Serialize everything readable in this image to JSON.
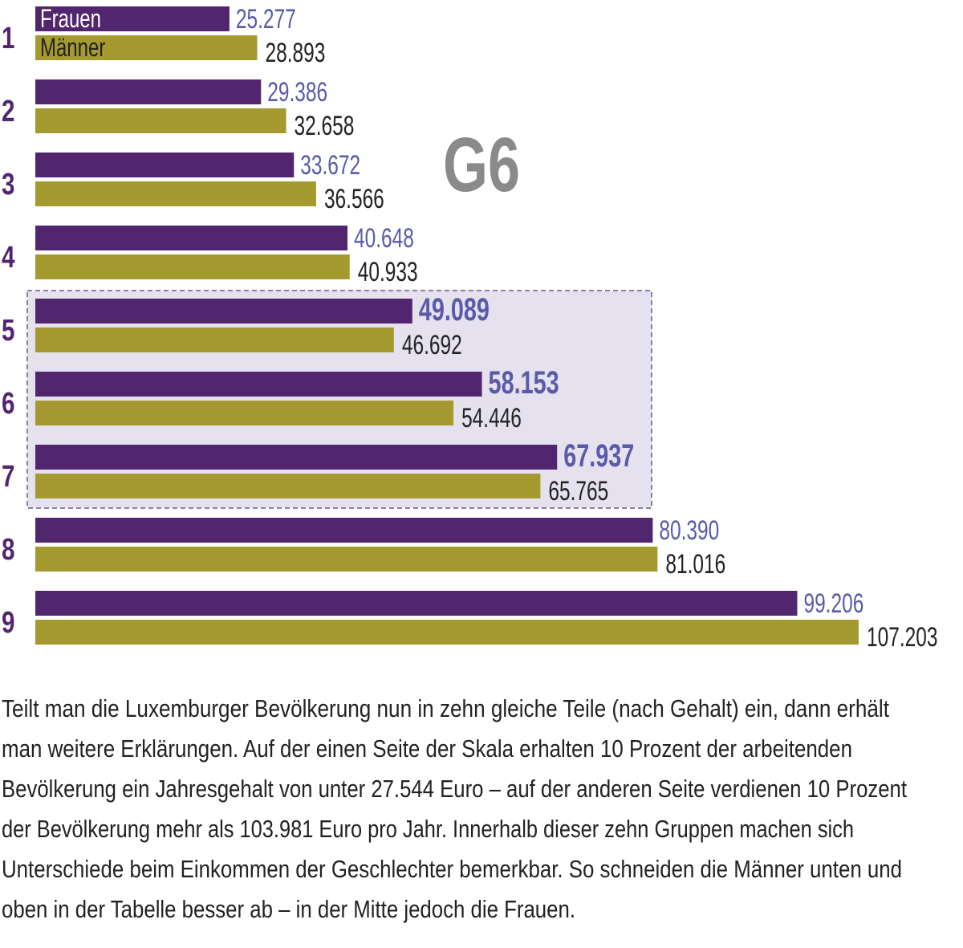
{
  "chart_data": {
    "type": "bar",
    "orientation": "horizontal",
    "categories": [
      "1",
      "2",
      "3",
      "4",
      "5",
      "6",
      "7",
      "8",
      "9"
    ],
    "series": [
      {
        "name": "Frauen",
        "values": [
          25277,
          29386,
          33672,
          40648,
          49089,
          58153,
          67937,
          80390,
          99206
        ],
        "labels": [
          "25.277",
          "29.386",
          "33.672",
          "40.648",
          "49.089",
          "58.153",
          "67.937",
          "80.390",
          "99.206"
        ],
        "color": "#52266e",
        "label_color": "#5a5aa8"
      },
      {
        "name": "Männer",
        "values": [
          28893,
          32658,
          36566,
          40933,
          46692,
          54446,
          65765,
          81016,
          107203
        ],
        "labels": [
          "28.893",
          "32.658",
          "36.566",
          "40.933",
          "46.692",
          "54.446",
          "65.765",
          "81.016",
          "107.203"
        ],
        "color": "#a59a30",
        "label_color": "#222222"
      }
    ],
    "highlighted_categories": [
      "5",
      "6",
      "7"
    ],
    "highlight_color": "#e6e1ee",
    "title": "G6",
    "xlim": [
      0,
      107203
    ],
    "grid": false
  },
  "text": {
    "lines": [
      "Teilt man die Luxemburger Bevölkerung nun in zehn gleiche Teile (nach Gehalt) ein, dann erhält",
      "man weitere Erklärungen. Auf der einen Seite der Skala erhalten 10 Prozent der arbeitenden",
      "Bevölkerung ein Jahresgehalt von unter 27.544 Euro – auf der anderen Seite verdienen 10 Prozent",
      "der Bevölkerung mehr als 103.981 Euro pro Jahr. Innerhalb dieser zehn Gruppen machen sich",
      "Unterschiede beim Einkommen der Geschlechter bemerkbar. So schneiden die Männer unten und",
      "oben in der Tabelle besser ab – in der Mitte jedoch die Frauen."
    ]
  }
}
